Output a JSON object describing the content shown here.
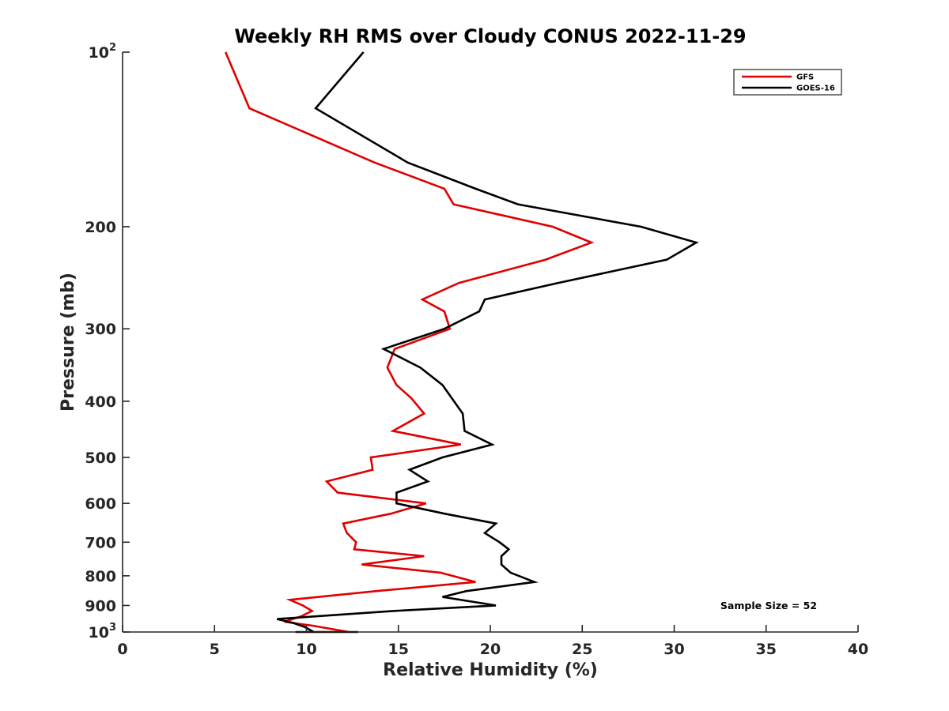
{
  "chart_data": {
    "type": "line",
    "title": "Weekly RH RMS over Cloudy CONUS 2022-11-29",
    "xlabel": "Relative Humidity (%)",
    "ylabel": "Pressure (mb)",
    "xlim": [
      0,
      40
    ],
    "ylim": [
      100,
      1000
    ],
    "y_scale": "log",
    "y_reversed": true,
    "grid": false,
    "legend_position": "top-right",
    "x_ticks": [
      0,
      5,
      10,
      15,
      20,
      25,
      30,
      35,
      40
    ],
    "x_tick_labels": [
      "0",
      "5",
      "10",
      "15",
      "20",
      "25",
      "30",
      "35",
      "40"
    ],
    "y_ticks": [
      {
        "value": 100,
        "base": "10",
        "exp": "2"
      },
      {
        "value": 200,
        "label": "200"
      },
      {
        "value": 300,
        "label": "300"
      },
      {
        "value": 400,
        "label": "400"
      },
      {
        "value": 500,
        "label": "500"
      },
      {
        "value": 600,
        "label": "600"
      },
      {
        "value": 700,
        "label": "700"
      },
      {
        "value": 800,
        "label": "800"
      },
      {
        "value": 900,
        "label": "900"
      },
      {
        "value": 1000,
        "base": "10",
        "exp": "3"
      }
    ],
    "annotation": "Sample Size = 52",
    "series": [
      {
        "name": "GFS",
        "color": "#e00000",
        "points": [
          [
            5.6,
            100
          ],
          [
            6.9,
            125
          ],
          [
            13.7,
            155
          ],
          [
            17.5,
            172
          ],
          [
            18.0,
            183
          ],
          [
            23.4,
            200
          ],
          [
            25.5,
            213
          ],
          [
            23.0,
            228
          ],
          [
            18.3,
            250
          ],
          [
            16.3,
            267
          ],
          [
            17.5,
            280
          ],
          [
            17.8,
            300
          ],
          [
            14.8,
            325
          ],
          [
            14.4,
            350
          ],
          [
            14.9,
            375
          ],
          [
            15.7,
            395
          ],
          [
            16.4,
            420
          ],
          [
            14.7,
            450
          ],
          [
            18.4,
            475
          ],
          [
            13.5,
            500
          ],
          [
            13.6,
            525
          ],
          [
            11.1,
            550
          ],
          [
            11.7,
            575
          ],
          [
            16.5,
            600
          ],
          [
            14.6,
            625
          ],
          [
            12.0,
            650
          ],
          [
            12.2,
            675
          ],
          [
            12.7,
            700
          ],
          [
            12.6,
            720
          ],
          [
            16.4,
            740
          ],
          [
            13.0,
            765
          ],
          [
            17.3,
            790
          ],
          [
            19.2,
            820
          ],
          [
            13.8,
            850
          ],
          [
            9.1,
            880
          ],
          [
            9.8,
            900
          ],
          [
            10.3,
            920
          ],
          [
            9.7,
            940
          ],
          [
            8.8,
            960
          ],
          [
            10.3,
            975
          ],
          [
            12.3,
            1000
          ]
        ]
      },
      {
        "name": "GOES-16",
        "color": "#000000",
        "points": [
          [
            13.1,
            100
          ],
          [
            10.5,
            125
          ],
          [
            15.5,
            155
          ],
          [
            19.2,
            172
          ],
          [
            21.5,
            183
          ],
          [
            28.2,
            200
          ],
          [
            31.2,
            213
          ],
          [
            29.6,
            228
          ],
          [
            23.7,
            250
          ],
          [
            19.7,
            267
          ],
          [
            19.4,
            280
          ],
          [
            17.5,
            300
          ],
          [
            14.2,
            325
          ],
          [
            16.2,
            350
          ],
          [
            17.4,
            375
          ],
          [
            17.9,
            395
          ],
          [
            18.5,
            420
          ],
          [
            18.6,
            450
          ],
          [
            20.1,
            475
          ],
          [
            17.4,
            500
          ],
          [
            15.6,
            525
          ],
          [
            16.6,
            550
          ],
          [
            14.9,
            575
          ],
          [
            14.9,
            600
          ],
          [
            17.5,
            625
          ],
          [
            20.3,
            650
          ],
          [
            19.7,
            675
          ],
          [
            20.5,
            700
          ],
          [
            21.0,
            720
          ],
          [
            20.6,
            740
          ],
          [
            20.6,
            765
          ],
          [
            21.1,
            790
          ],
          [
            22.4,
            820
          ],
          [
            18.7,
            850
          ],
          [
            17.4,
            870
          ],
          [
            20.3,
            900
          ],
          [
            14.7,
            920
          ],
          [
            11.5,
            935
          ],
          [
            8.4,
            950
          ],
          [
            9.3,
            965
          ],
          [
            9.9,
            980
          ],
          [
            10.4,
            1000
          ],
          [
            12.8,
            1010
          ],
          [
            9.4,
            1025
          ]
        ]
      }
    ]
  }
}
